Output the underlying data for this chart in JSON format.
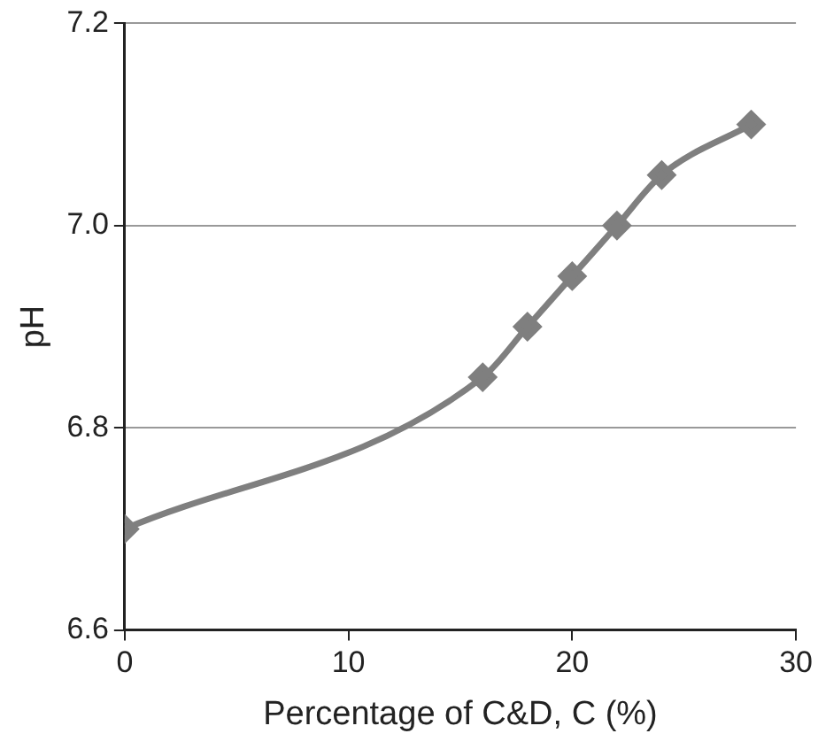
{
  "chart_data": {
    "type": "line",
    "xlabel": "Percentage of C&D, C (%)",
    "ylabel": "pH",
    "x": [
      0,
      16,
      18,
      20,
      22,
      24,
      28
    ],
    "series": [
      {
        "color": "#7f7f7f",
        "values": [
          6.7,
          6.85,
          6.9,
          6.95,
          7.0,
          7.05,
          7.1
        ]
      }
    ],
    "xlim": [
      0,
      30
    ],
    "xticks": [
      0,
      10,
      20,
      30
    ],
    "ylim": [
      6.6,
      7.2
    ],
    "yticks": [
      6.6,
      6.8,
      {
        "value": 7.0,
        "label": "7.0"
      },
      7.2
    ],
    "grid": "y",
    "marker": "diamond",
    "legend": false
  }
}
